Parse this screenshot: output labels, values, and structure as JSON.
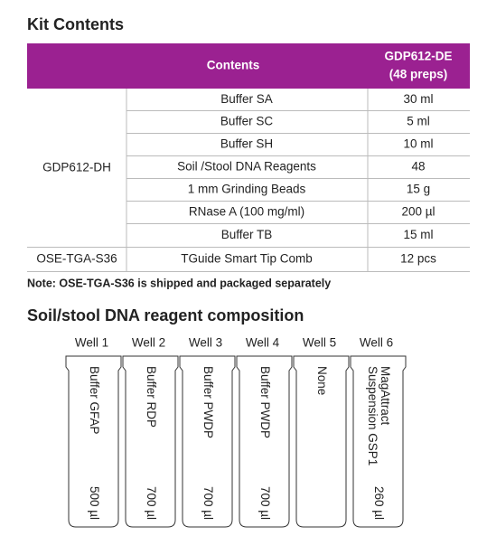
{
  "kit_contents": {
    "title": "Kit Contents",
    "table": {
      "header": {
        "contents": "Contents",
        "product": [
          "GDP612-DE",
          "(48 preps)"
        ]
      },
      "groups": [
        {
          "name": "GDP612-DH",
          "rows": [
            [
              "Buffer SA",
              "30 ml"
            ],
            [
              "Buffer SC",
              "5 ml"
            ],
            [
              "Buffer SH",
              "10 ml"
            ],
            [
              "Soil /Stool DNA Reagents",
              "48"
            ],
            [
              "1 mm Grinding Beads",
              "15 g"
            ],
            [
              "RNase A (100 mg/ml)",
              "200 µl"
            ],
            [
              "Buffer TB",
              "15 ml"
            ]
          ]
        },
        {
          "name": "OSE-TGA-S36",
          "rows": [
            [
              "TGuide Smart Tip Comb",
              "12 pcs"
            ]
          ]
        }
      ]
    },
    "note": "Note: OSE-TGA-S36 is shipped and packaged separately"
  },
  "composition": {
    "title": "Soil/stool DNA reagent composition",
    "wells": [
      {
        "label": "Well 1",
        "reagent": [
          "Buffer GFAP"
        ],
        "volume": "500 µl"
      },
      {
        "label": "Well 2",
        "reagent": [
          "Buffer RDP"
        ],
        "volume": "700 µl"
      },
      {
        "label": "Well 3",
        "reagent": [
          "Buffer PWDP"
        ],
        "volume": "700 µl"
      },
      {
        "label": "Well 4",
        "reagent": [
          "Buffer PWDP"
        ],
        "volume": "700 µl"
      },
      {
        "label": "Well 5",
        "reagent": [
          "None"
        ]
      },
      {
        "label": "Well 6",
        "reagent": [
          "MagAttract",
          "Suspension GSP1"
        ],
        "volume": "260 µl"
      }
    ]
  }
}
